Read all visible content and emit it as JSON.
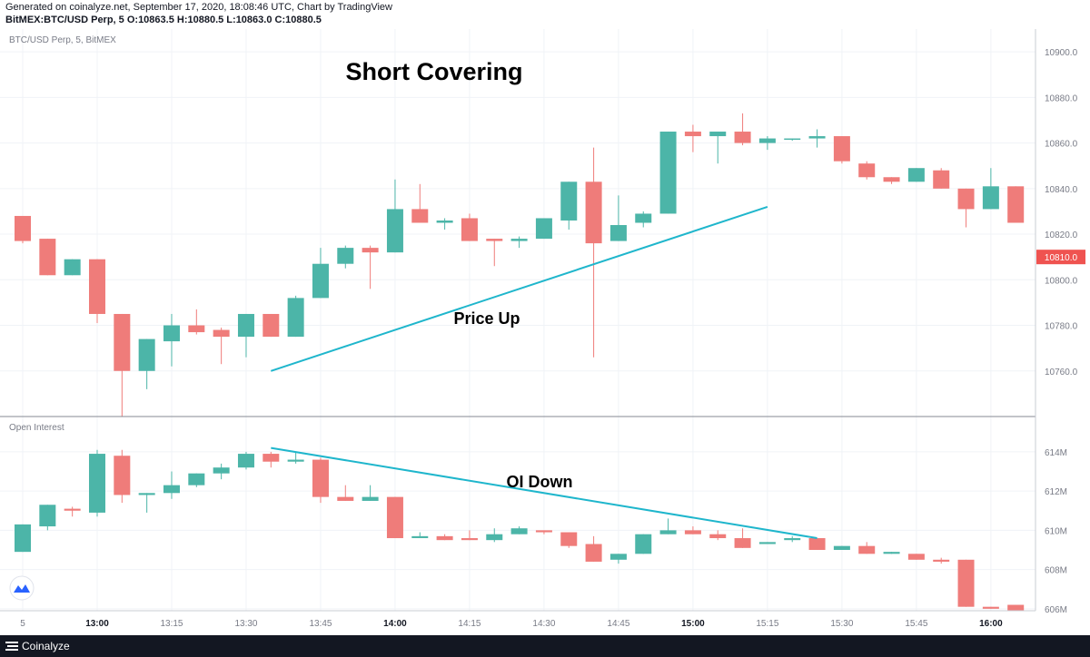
{
  "header": {
    "generated": "Generated on coinalyze.net, September 17, 2020, 18:08:46 UTC, Chart by TradingView",
    "ohlc": "BitMEX:BTC/USD Perp, 5 O:10863.5 H:10880.5 L:10863.0 C:10880.5"
  },
  "footer": {
    "brand": "Coinalyze"
  },
  "colors": {
    "up": "#4cb5a8",
    "down": "#ef7c7a",
    "annotation": "#1fb6cc",
    "price_tag": "#ef5350",
    "grid": "#f0f3f7"
  },
  "chart_data": [
    {
      "type": "candlestick",
      "pane_label": "BTC/USD Perp, 5, BitMEX",
      "title": "Short Covering",
      "annotation": "Price Up",
      "trendline": {
        "from": {
          "x": "13:35",
          "y": 10760
        },
        "to": {
          "x": "15:15",
          "y": 10832
        }
      },
      "ylim": [
        10740,
        10910
      ],
      "y_ticks": [
        "10900.0",
        "10880.0",
        "10860.0",
        "10840.0",
        "10820.0",
        "10800.0",
        "10780.0",
        "10760.0"
      ],
      "y_tick_values": [
        10900,
        10880,
        10860,
        10840,
        10820,
        10800,
        10780,
        10760
      ],
      "last_price": "10810.0",
      "last_price_value": 10810,
      "candles": [
        {
          "t": "12:45",
          "o": 10828,
          "h": 10828,
          "l": 10816,
          "c": 10817
        },
        {
          "t": "12:50",
          "o": 10818,
          "h": 10818,
          "l": 10802,
          "c": 10802
        },
        {
          "t": "12:55",
          "o": 10802,
          "h": 10809,
          "l": 10802,
          "c": 10809
        },
        {
          "t": "13:00",
          "o": 10809,
          "h": 10809,
          "l": 10781,
          "c": 10785
        },
        {
          "t": "13:05",
          "o": 10785,
          "h": 10785,
          "l": 10740,
          "c": 10760
        },
        {
          "t": "13:10",
          "o": 10760,
          "h": 10774,
          "l": 10752,
          "c": 10774
        },
        {
          "t": "13:15",
          "o": 10773,
          "h": 10785,
          "l": 10762,
          "c": 10780
        },
        {
          "t": "13:20",
          "o": 10780,
          "h": 10787,
          "l": 10776,
          "c": 10777
        },
        {
          "t": "13:25",
          "o": 10778,
          "h": 10779,
          "l": 10763,
          "c": 10775
        },
        {
          "t": "13:30",
          "o": 10775,
          "h": 10785,
          "l": 10766,
          "c": 10785
        },
        {
          "t": "13:35",
          "o": 10785,
          "h": 10785,
          "l": 10775,
          "c": 10775
        },
        {
          "t": "13:40",
          "o": 10775,
          "h": 10793,
          "l": 10775,
          "c": 10792
        },
        {
          "t": "13:45",
          "o": 10792,
          "h": 10814,
          "l": 10792,
          "c": 10807
        },
        {
          "t": "13:50",
          "o": 10807,
          "h": 10815,
          "l": 10805,
          "c": 10814
        },
        {
          "t": "13:55",
          "o": 10814,
          "h": 10815,
          "l": 10796,
          "c": 10812
        },
        {
          "t": "14:00",
          "o": 10812,
          "h": 10844,
          "l": 10812,
          "c": 10831
        },
        {
          "t": "14:05",
          "o": 10831,
          "h": 10842,
          "l": 10825,
          "c": 10825
        },
        {
          "t": "14:10",
          "o": 10825,
          "h": 10827,
          "l": 10822,
          "c": 10826
        },
        {
          "t": "14:15",
          "o": 10827,
          "h": 10829,
          "l": 10817,
          "c": 10817
        },
        {
          "t": "14:20",
          "o": 10818,
          "h": 10818,
          "l": 10806,
          "c": 10817
        },
        {
          "t": "14:25",
          "o": 10817,
          "h": 10819,
          "l": 10814,
          "c": 10818
        },
        {
          "t": "14:30",
          "o": 10818,
          "h": 10827,
          "l": 10818,
          "c": 10827
        },
        {
          "t": "14:35",
          "o": 10826,
          "h": 10843,
          "l": 10822,
          "c": 10843
        },
        {
          "t": "14:40",
          "o": 10843,
          "h": 10858,
          "l": 10766,
          "c": 10816
        },
        {
          "t": "14:45",
          "o": 10817,
          "h": 10837,
          "l": 10817,
          "c": 10824
        },
        {
          "t": "14:50",
          "o": 10825,
          "h": 10830,
          "l": 10823,
          "c": 10829
        },
        {
          "t": "14:55",
          "o": 10829,
          "h": 10865,
          "l": 10829,
          "c": 10865
        },
        {
          "t": "15:00",
          "o": 10865,
          "h": 10868,
          "l": 10856,
          "c": 10863
        },
        {
          "t": "15:05",
          "o": 10863,
          "h": 10865,
          "l": 10851,
          "c": 10865
        },
        {
          "t": "15:10",
          "o": 10865,
          "h": 10873,
          "l": 10859,
          "c": 10860
        },
        {
          "t": "15:15",
          "o": 10860,
          "h": 10863,
          "l": 10857,
          "c": 10862
        },
        {
          "t": "15:20",
          "o": 10862,
          "h": 10862,
          "l": 10861,
          "c": 10862
        },
        {
          "t": "15:25",
          "o": 10862,
          "h": 10866,
          "l": 10858,
          "c": 10863
        },
        {
          "t": "15:30",
          "o": 10863,
          "h": 10863,
          "l": 10851,
          "c": 10852
        },
        {
          "t": "15:35",
          "o": 10851,
          "h": 10852,
          "l": 10844,
          "c": 10845
        },
        {
          "t": "15:40",
          "o": 10845,
          "h": 10845,
          "l": 10842,
          "c": 10843
        },
        {
          "t": "15:45",
          "o": 10843,
          "h": 10849,
          "l": 10843,
          "c": 10849
        },
        {
          "t": "15:50",
          "o": 10848,
          "h": 10849,
          "l": 10840,
          "c": 10840
        },
        {
          "t": "15:55",
          "o": 10840,
          "h": 10840,
          "l": 10823,
          "c": 10831
        },
        {
          "t": "16:00",
          "o": 10831,
          "h": 10849,
          "l": 10831,
          "c": 10841
        },
        {
          "t": "16:05",
          "o": 10841,
          "h": 10841,
          "l": 10825,
          "c": 10825
        }
      ]
    },
    {
      "type": "candlestick",
      "pane_label": "Open Interest",
      "annotation": "OI Down",
      "trendline": {
        "from": {
          "x": "13:35",
          "y": 614.2
        },
        "to": {
          "x": "15:25",
          "y": 609.6
        }
      },
      "ylim": [
        605.9,
        615.8
      ],
      "y_ticks": [
        "614M",
        "612M",
        "610M",
        "608M",
        "606M"
      ],
      "y_tick_values": [
        614,
        612,
        610,
        608,
        606
      ],
      "candles": [
        {
          "t": "12:45",
          "o": 608.9,
          "h": 610.3,
          "l": 608.9,
          "c": 610.3
        },
        {
          "t": "12:50",
          "o": 610.2,
          "h": 611.3,
          "l": 610.0,
          "c": 611.3
        },
        {
          "t": "12:55",
          "o": 611.1,
          "h": 611.2,
          "l": 610.7,
          "c": 611.0
        },
        {
          "t": "13:00",
          "o": 610.9,
          "h": 614.1,
          "l": 610.7,
          "c": 613.9
        },
        {
          "t": "13:05",
          "o": 613.8,
          "h": 614.1,
          "l": 611.4,
          "c": 611.8
        },
        {
          "t": "13:10",
          "o": 611.8,
          "h": 611.9,
          "l": 610.9,
          "c": 611.9
        },
        {
          "t": "13:15",
          "o": 611.9,
          "h": 613.0,
          "l": 611.6,
          "c": 612.3
        },
        {
          "t": "13:20",
          "o": 612.3,
          "h": 612.9,
          "l": 612.2,
          "c": 612.9
        },
        {
          "t": "13:25",
          "o": 612.9,
          "h": 613.4,
          "l": 612.6,
          "c": 613.2
        },
        {
          "t": "13:30",
          "o": 613.2,
          "h": 614.0,
          "l": 613.1,
          "c": 613.9
        },
        {
          "t": "13:35",
          "o": 613.9,
          "h": 614.0,
          "l": 613.2,
          "c": 613.5
        },
        {
          "t": "13:40",
          "o": 613.5,
          "h": 614.0,
          "l": 613.4,
          "c": 613.6
        },
        {
          "t": "13:45",
          "o": 613.6,
          "h": 613.7,
          "l": 611.4,
          "c": 611.7
        },
        {
          "t": "13:50",
          "o": 611.7,
          "h": 612.3,
          "l": 611.5,
          "c": 611.5
        },
        {
          "t": "13:55",
          "o": 611.5,
          "h": 612.3,
          "l": 611.5,
          "c": 611.7
        },
        {
          "t": "14:00",
          "o": 611.7,
          "h": 611.7,
          "l": 609.6,
          "c": 609.6
        },
        {
          "t": "14:05",
          "o": 609.6,
          "h": 609.9,
          "l": 609.6,
          "c": 609.7
        },
        {
          "t": "14:10",
          "o": 609.7,
          "h": 609.8,
          "l": 609.5,
          "c": 609.5
        },
        {
          "t": "14:15",
          "o": 609.6,
          "h": 610.0,
          "l": 609.5,
          "c": 609.5
        },
        {
          "t": "14:20",
          "o": 609.5,
          "h": 610.1,
          "l": 609.4,
          "c": 609.8
        },
        {
          "t": "14:25",
          "o": 609.8,
          "h": 610.2,
          "l": 609.8,
          "c": 610.1
        },
        {
          "t": "14:30",
          "o": 610.0,
          "h": 610.0,
          "l": 609.8,
          "c": 609.9
        },
        {
          "t": "14:35",
          "o": 609.9,
          "h": 609.9,
          "l": 609.1,
          "c": 609.2
        },
        {
          "t": "14:40",
          "o": 609.3,
          "h": 609.7,
          "l": 608.4,
          "c": 608.4
        },
        {
          "t": "14:45",
          "o": 608.5,
          "h": 608.8,
          "l": 608.3,
          "c": 608.8
        },
        {
          "t": "14:50",
          "o": 608.8,
          "h": 609.8,
          "l": 608.8,
          "c": 609.8
        },
        {
          "t": "14:55",
          "o": 609.8,
          "h": 610.6,
          "l": 609.8,
          "c": 610.0
        },
        {
          "t": "15:00",
          "o": 610.0,
          "h": 610.2,
          "l": 609.8,
          "c": 609.8
        },
        {
          "t": "15:05",
          "o": 609.8,
          "h": 610.0,
          "l": 609.5,
          "c": 609.6
        },
        {
          "t": "15:10",
          "o": 609.6,
          "h": 610.1,
          "l": 609.1,
          "c": 609.1
        },
        {
          "t": "15:15",
          "o": 609.3,
          "h": 609.4,
          "l": 609.3,
          "c": 609.4
        },
        {
          "t": "15:20",
          "o": 609.5,
          "h": 609.7,
          "l": 609.4,
          "c": 609.6
        },
        {
          "t": "15:25",
          "o": 609.6,
          "h": 609.6,
          "l": 609.0,
          "c": 609.0
        },
        {
          "t": "15:30",
          "o": 609.0,
          "h": 609.2,
          "l": 609.0,
          "c": 609.2
        },
        {
          "t": "15:35",
          "o": 609.2,
          "h": 609.4,
          "l": 608.8,
          "c": 608.8
        },
        {
          "t": "15:40",
          "o": 608.8,
          "h": 608.9,
          "l": 608.8,
          "c": 608.9
        },
        {
          "t": "15:45",
          "o": 608.8,
          "h": 608.8,
          "l": 608.5,
          "c": 608.5
        },
        {
          "t": "15:50",
          "o": 608.5,
          "h": 608.6,
          "l": 608.3,
          "c": 608.4
        },
        {
          "t": "15:55",
          "o": 608.5,
          "h": 608.5,
          "l": 606.1,
          "c": 606.1
        },
        {
          "t": "16:00",
          "o": 606.1,
          "h": 606.1,
          "l": 606.0,
          "c": 606.0
        },
        {
          "t": "16:05",
          "o": 606.2,
          "h": 606.2,
          "l": 605.9,
          "c": 605.9
        }
      ]
    }
  ],
  "x_axis": {
    "ticks": [
      {
        "t": "12:45",
        "label": "5",
        "bold": false
      },
      {
        "t": "13:00",
        "label": "13:00",
        "bold": true
      },
      {
        "t": "13:15",
        "label": "13:15",
        "bold": false
      },
      {
        "t": "13:30",
        "label": "13:30",
        "bold": false
      },
      {
        "t": "13:45",
        "label": "13:45",
        "bold": false
      },
      {
        "t": "14:00",
        "label": "14:00",
        "bold": true
      },
      {
        "t": "14:15",
        "label": "14:15",
        "bold": false
      },
      {
        "t": "14:30",
        "label": "14:30",
        "bold": false
      },
      {
        "t": "14:45",
        "label": "14:45",
        "bold": false
      },
      {
        "t": "15:00",
        "label": "15:00",
        "bold": true
      },
      {
        "t": "15:15",
        "label": "15:15",
        "bold": false
      },
      {
        "t": "15:30",
        "label": "15:30",
        "bold": false
      },
      {
        "t": "15:45",
        "label": "15:45",
        "bold": false
      },
      {
        "t": "16:00",
        "label": "16:00",
        "bold": true
      }
    ]
  }
}
